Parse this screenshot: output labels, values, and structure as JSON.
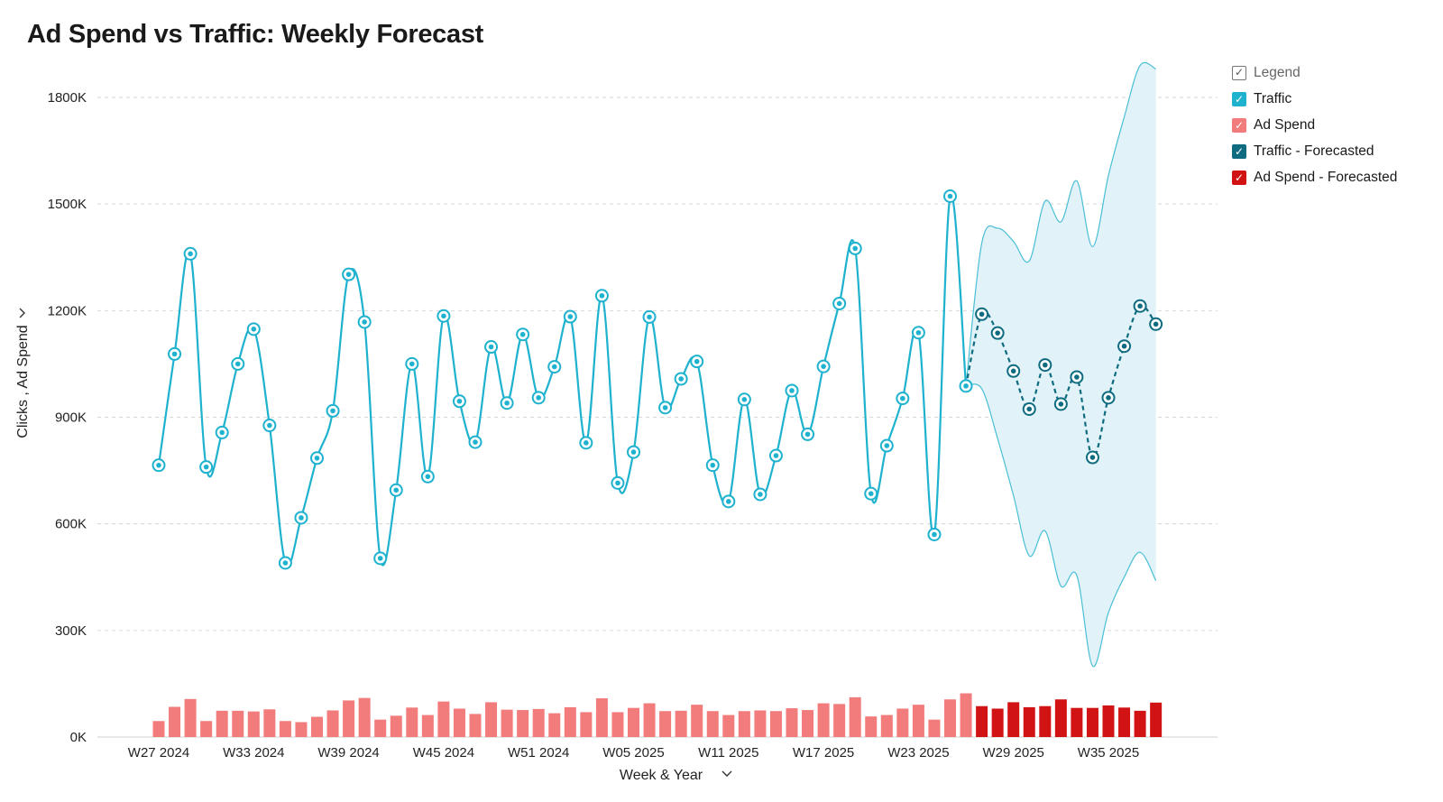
{
  "title": "Ad Spend vs Traffic: Weekly Forecast",
  "legend": {
    "header": "Legend",
    "items": [
      {
        "label": "Traffic",
        "color": "#1eb2ce"
      },
      {
        "label": "Ad Spend",
        "color": "#f27b7b"
      },
      {
        "label": "Traffic - Forecasted",
        "color": "#0f6c80"
      },
      {
        "label": "Ad Spend - Forecasted",
        "color": "#d11313"
      }
    ]
  },
  "chart_data": {
    "type": "line+bar",
    "title": "Ad Spend vs Traffic: Weekly Forecast",
    "xlabel": "Week & Year",
    "ylabel": "Clicks , Ad Spend",
    "ylim": [
      0,
      1800000
    ],
    "y_ticks": [
      "0K",
      "300K",
      "600K",
      "900K",
      "1200K",
      "1500K",
      "1800K"
    ],
    "x_ticks": [
      "W27 2024",
      "W33 2024",
      "W39 2024",
      "W45 2024",
      "W51 2024",
      "W05 2025",
      "W11 2025",
      "W17 2025",
      "W23 2025",
      "W29 2025",
      "W35 2025"
    ],
    "grid": true,
    "legend_position": "top-right",
    "x_start": "W27 2024",
    "x_end": "W38 2025",
    "series": [
      {
        "name": "Traffic",
        "values": [
          765000,
          1078000,
          1360000,
          760000,
          857000,
          1050000,
          1148000,
          877000,
          490000,
          617000,
          785000,
          918000,
          1302000,
          1168000,
          503000,
          695000,
          1050000,
          733000,
          1185000,
          945000,
          830000,
          1098000,
          940000,
          1133000,
          955000,
          1042000,
          1183000,
          828000,
          1242000,
          715000,
          802000,
          1182000,
          927000,
          1008000,
          1057000,
          765000,
          663000,
          950000,
          683000,
          792000,
          975000,
          852000,
          1043000,
          1220000,
          1375000,
          685000,
          820000,
          953000,
          1138000,
          570000,
          1522000,
          988000
        ]
      },
      {
        "name": "Traffic - Forecasted",
        "values": [
          988000,
          1190000,
          1137000,
          1030000,
          923000,
          1047000,
          937000,
          1013000,
          787000,
          955000,
          1100000,
          1213000,
          1162000
        ]
      },
      {
        "name": "Forecast Upper Bound",
        "values": [
          988000,
          1390000,
          1432000,
          1395000,
          1340000,
          1508000,
          1450000,
          1565000,
          1380000,
          1580000,
          1745000,
          1890000,
          1880000
        ]
      },
      {
        "name": "Forecast Lower Bound",
        "values": [
          988000,
          980000,
          840000,
          680000,
          510000,
          580000,
          425000,
          455000,
          200000,
          350000,
          450000,
          520000,
          440000
        ]
      },
      {
        "name": "Ad Spend",
        "values": [
          45000,
          85000,
          107000,
          45000,
          74000,
          74000,
          72000,
          78000,
          45000,
          42000,
          57000,
          75000,
          103000,
          110000,
          49000,
          60000,
          83000,
          62000,
          100000,
          80000,
          65000,
          98000,
          77000,
          76000,
          79000,
          67000,
          84000,
          70000,
          109000,
          70000,
          82000,
          95000,
          73000,
          74000,
          91000,
          73000,
          62000,
          73000,
          75000,
          73000,
          81000,
          76000,
          95000,
          93000,
          112000,
          58000,
          62000,
          80000,
          91000,
          49000,
          106000,
          123000
        ]
      },
      {
        "name": "Ad Spend - Forecasted",
        "values": [
          87000,
          80000,
          98000,
          84000,
          87000,
          106000,
          82000,
          82000,
          89000,
          83000,
          74000,
          97000
        ]
      }
    ]
  }
}
